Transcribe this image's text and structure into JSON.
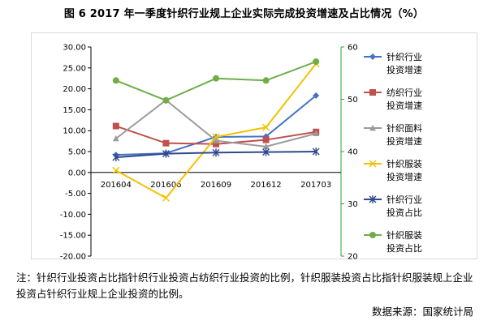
{
  "title": "图 6 2017 年一季度针织行业规上企业实际完成投资增速及占比情况（%）",
  "note": "注：针织行业投资占比指针织行业投资占纺织行业投资的比例，针织服装投资占比指针织服装规上企业投资占针织行业规上企业投资的比例。",
  "source": "数据来源：国家统计局",
  "chart_data": {
    "type": "line",
    "categories": [
      "201604",
      "201606",
      "201609",
      "201612",
      "201703"
    ],
    "y_left": {
      "range": [
        -20,
        30
      ],
      "ticks": [
        "-20.00",
        "-15.00",
        "-10.00",
        "-5.00",
        "0.00",
        "5.00",
        "10.00",
        "15.00",
        "20.00",
        "25.00",
        "30.00"
      ]
    },
    "y_right": {
      "range": [
        20,
        60
      ],
      "ticks": [
        "20",
        "30",
        "40",
        "50",
        "60"
      ]
    },
    "series": [
      {
        "name": "针织行业投资增速",
        "axis": "left",
        "color": "#4472C4",
        "marker": "diamond",
        "values": [
          4.2,
          4.6,
          8.5,
          8.6,
          18.4
        ]
      },
      {
        "name": "纺织行业投资增速",
        "axis": "left",
        "color": "#C0504D",
        "marker": "square",
        "values": [
          11.1,
          7.0,
          6.8,
          7.8,
          9.7
        ]
      },
      {
        "name": "针织面料投资增速",
        "axis": "left",
        "color": "#9B9B9B",
        "marker": "triangle",
        "values": [
          8.1,
          17.3,
          7.6,
          6.2,
          9.3
        ]
      },
      {
        "name": "针织服装投资增速",
        "axis": "left",
        "color": "#F2C200",
        "marker": "x",
        "values": [
          0.5,
          -6.1,
          8.5,
          10.8,
          26.0
        ]
      },
      {
        "name": "针织行业投资占比",
        "axis": "right",
        "color": "#2E4A8C",
        "marker": "star",
        "values": [
          38.9,
          39.6,
          39.8,
          39.9,
          40.0
        ]
      },
      {
        "name": "针织服装投资占比",
        "axis": "right",
        "color": "#70AD47",
        "marker": "circle",
        "values": [
          53.6,
          49.8,
          54.0,
          53.6,
          57.2
        ]
      }
    ]
  },
  "legend": [
    {
      "line1": "针织行业",
      "line2": "投资增速"
    },
    {
      "line1": "纺织行业",
      "line2": "投资增速"
    },
    {
      "line1": "针织面料",
      "line2": "投资增速"
    },
    {
      "line1": "针织服装",
      "line2": "投资增速"
    },
    {
      "line1": "针织行业",
      "line2": "投资占比"
    },
    {
      "line1": "针织服装",
      "line2": "投资占比"
    }
  ]
}
